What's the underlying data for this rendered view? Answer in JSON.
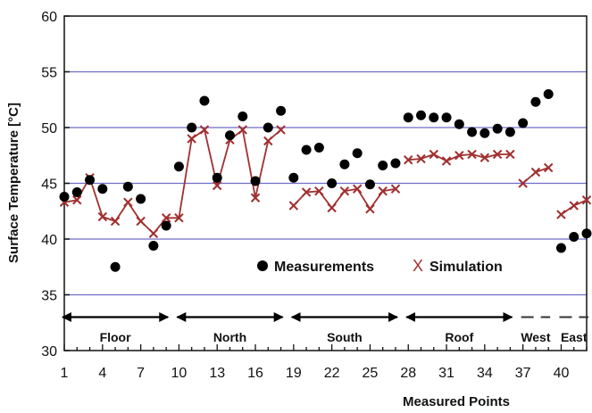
{
  "chart_data": {
    "type": "scatter",
    "xlabel": "Measured Points",
    "ylabel": "Surface Temperature [°C]",
    "xlim": [
      1,
      42
    ],
    "ylim": [
      30,
      60
    ],
    "x_ticks": [
      1,
      4,
      7,
      10,
      13,
      16,
      19,
      22,
      25,
      28,
      31,
      34,
      37,
      40
    ],
    "y_ticks": [
      30,
      35,
      40,
      45,
      50,
      55,
      60
    ],
    "grid": "horizontal",
    "legend_position": "bottom-right",
    "colors": {
      "measurement": "#000000",
      "simulation": "#a03030",
      "grid": "#6e6ec8"
    },
    "series": [
      {
        "name": "Measurements",
        "marker": "dot",
        "points": [
          [
            1,
            43.8
          ],
          [
            2,
            44.2
          ],
          [
            3,
            45.3
          ],
          [
            4,
            44.5
          ],
          [
            5,
            37.5
          ],
          [
            6,
            44.7
          ],
          [
            7,
            43.6
          ],
          [
            8,
            39.4
          ],
          [
            9,
            41.2
          ],
          [
            10,
            46.5
          ],
          [
            11,
            50.0
          ],
          [
            12,
            52.4
          ],
          [
            13,
            45.5
          ],
          [
            14,
            49.3
          ],
          [
            15,
            51.0
          ],
          [
            16,
            45.2
          ],
          [
            17,
            50.0
          ],
          [
            18,
            51.5
          ],
          [
            19,
            45.5
          ],
          [
            20,
            48.0
          ],
          [
            21,
            48.2
          ],
          [
            22,
            45.0
          ],
          [
            23,
            46.7
          ],
          [
            24,
            47.7
          ],
          [
            25,
            44.9
          ],
          [
            26,
            46.6
          ],
          [
            27,
            46.8
          ],
          [
            28,
            50.9
          ],
          [
            29,
            51.1
          ],
          [
            30,
            50.9
          ],
          [
            31,
            50.9
          ],
          [
            32,
            50.3
          ],
          [
            33,
            49.6
          ],
          [
            34,
            49.5
          ],
          [
            35,
            49.9
          ],
          [
            36,
            49.6
          ],
          [
            37,
            50.4
          ],
          [
            38,
            52.3
          ],
          [
            39,
            53.0
          ],
          [
            40,
            39.2
          ],
          [
            41,
            40.2
          ],
          [
            42,
            40.5
          ]
        ]
      },
      {
        "name": "Simulation",
        "marker": "x",
        "segments": [
          [
            [
              1,
              43.3
            ],
            [
              2,
              43.5
            ],
            [
              3,
              45.5
            ],
            [
              4,
              42.0
            ],
            [
              5,
              41.6
            ],
            [
              6,
              43.3
            ],
            [
              7,
              41.6
            ],
            [
              8,
              40.5
            ],
            [
              9,
              41.9
            ],
            [
              10,
              41.9
            ],
            [
              11,
              49.0
            ],
            [
              12,
              49.8
            ],
            [
              13,
              44.8
            ],
            [
              14,
              48.9
            ],
            [
              15,
              49.8
            ],
            [
              16,
              43.7
            ],
            [
              17,
              48.8
            ],
            [
              18,
              49.8
            ]
          ],
          [
            [
              19,
              43.0
            ],
            [
              20,
              44.2
            ],
            [
              21,
              44.3
            ],
            [
              22,
              42.8
            ],
            [
              23,
              44.3
            ],
            [
              24,
              44.5
            ],
            [
              25,
              42.7
            ],
            [
              26,
              44.3
            ],
            [
              27,
              44.5
            ]
          ],
          [
            [
              28,
              47.1
            ],
            [
              29,
              47.2
            ],
            [
              30,
              47.6
            ],
            [
              31,
              47.0
            ],
            [
              32,
              47.5
            ],
            [
              33,
              47.6
            ],
            [
              34,
              47.3
            ],
            [
              35,
              47.6
            ],
            [
              36,
              47.6
            ]
          ],
          [
            [
              37,
              45.0
            ],
            [
              38,
              46.0
            ],
            [
              39,
              46.4
            ]
          ],
          [
            [
              40,
              42.2
            ],
            [
              41,
              43.0
            ],
            [
              42,
              43.5
            ]
          ]
        ]
      }
    ],
    "regions": [
      {
        "label": "Floor",
        "x_start": 1,
        "x_end": 9,
        "style": "arrow"
      },
      {
        "label": "North",
        "x_start": 10,
        "x_end": 18,
        "style": "arrow"
      },
      {
        "label": "South",
        "x_start": 19,
        "x_end": 27,
        "style": "arrow"
      },
      {
        "label": "Roof",
        "x_start": 28,
        "x_end": 36,
        "style": "arrow"
      },
      {
        "label": "West",
        "x_start": 37,
        "x_end": 39,
        "style": "dash"
      },
      {
        "label": "East",
        "x_start": 40,
        "x_end": 42,
        "style": "dash"
      }
    ]
  }
}
